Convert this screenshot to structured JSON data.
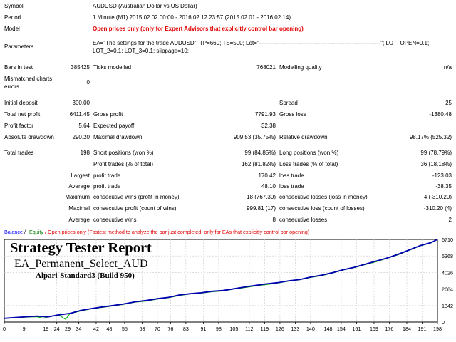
{
  "report": {
    "symbol": {
      "label": "Symbol",
      "value": "AUDUSD (Australian Dollar vs US Dollar)"
    },
    "period": {
      "label": "Period",
      "value": "1 Minute (M1) 2015.02.02 00:00 - 2016.02.12 23:57 (2015.02.01 - 2016.02.14)"
    },
    "model": {
      "label": "Model",
      "value": "Open prices only (only for Expert Advisors that explicitly control bar opening)"
    },
    "parameters": {
      "label": "Parameters",
      "line1": "EA=\"The settings for the trade AUDUSD\"; TP=660; TS=500; Lot=\"----------------------------------------------------------------\"; LOT_OPEN=0.1;",
      "line2": "LOT_2=0.1; LOT_3=0.1; slippage=10;"
    },
    "bars": {
      "label": "Bars in test",
      "value": "385425",
      "ticks_label": "Ticks modelled",
      "ticks_value": "768021",
      "quality_label": "Modelling quality",
      "quality_value": "n/a"
    },
    "mismatched": {
      "label1": "Mismatched charts",
      "label2": "errors",
      "value": "0"
    },
    "initial_deposit": {
      "label": "Initial deposit",
      "value": "300.00",
      "spread_label": "Spread",
      "spread_value": "25"
    },
    "net_profit": {
      "label": "Total net profit",
      "value": "6411.45",
      "gp_label": "Gross profit",
      "gp_value": "7791.93",
      "gl_label": "Gross loss",
      "gl_value": "-1380.48"
    },
    "profit_factor": {
      "label": "Profit factor",
      "value": "5.64",
      "ep_label": "Expected payoff",
      "ep_value": "32.38"
    },
    "drawdown": {
      "label": "Absolute drawdown",
      "value": "290.20",
      "md_label": "Maximal drawdown",
      "md_value": "909.53 (35.75%)",
      "rd_label": "Relative drawdown",
      "rd_value": "98.17% (525.32)"
    },
    "trades": {
      "label": "Total trades",
      "value": "198",
      "sp_label": "Short positions (won %)",
      "sp_value": "99 (84.85%)",
      "lp_label": "Long positions (won %)",
      "lp_value": "99 (78.79%)"
    },
    "pt": {
      "label": "Profit trades (% of total)",
      "value": "162 (81.82%)",
      "lt_label": "Loss trades (% of total)",
      "lt_value": "36 (18.18%)"
    },
    "largest": {
      "label": "Largest",
      "pt_label": "profit trade",
      "pt_value": "170.42",
      "lt_label": "loss trade",
      "lt_value": "-123.03"
    },
    "average": {
      "label": "Average",
      "pt_label": "profit trade",
      "pt_value": "48.10",
      "lt_label": "loss trade",
      "lt_value": "-38.35"
    },
    "maximum": {
      "label": "Maximum",
      "w_label": "consecutive wins (profit in money)",
      "w_value": "18 (767.30)",
      "l_label": "consecutive losses (loss in money)",
      "l_value": "4 (-310.20)"
    },
    "maximal": {
      "label": "Maximal",
      "w_label": "consecutive profit (count of wins)",
      "w_value": "999.81 (17)",
      "l_label": "consecutive loss (count of losses)",
      "l_value": "-310.20 (4)"
    },
    "average2": {
      "label": "Average",
      "w_label": "consecutive wins",
      "w_value": "8",
      "l_label": "consecutive losses",
      "l_value": "2"
    }
  },
  "chart": {
    "legend": {
      "balance": "Balance",
      "sep": " / ",
      "equity": "Equity",
      "rest": " / Open prices only (Fastest method to analyze the bar just completed, only for EAs that explicitly control bar opening)"
    },
    "overlay": {
      "title": "Strategy Tester Report",
      "ea": "EA_Permanent_Select_AUD",
      "server": "Alpari-Standard3 (Build 950)"
    },
    "colors": {
      "balance": "#0000b0",
      "equity": "#00b000",
      "legend_balance": "#0000ff",
      "legend_equity": "#008000",
      "legend_rest": "#e00000"
    }
  },
  "chart_data": {
    "type": "line",
    "x_ticks": [
      "0",
      "9",
      "19",
      "24",
      "29",
      "34",
      "42",
      "48",
      "55",
      "63",
      "70",
      "76",
      "83",
      "91",
      "98",
      "105",
      "112",
      "119",
      "126",
      "133",
      "140",
      "148",
      "154",
      "161",
      "169",
      "176",
      "184",
      "191",
      "198"
    ],
    "y_ticks": [
      "6710",
      "5368",
      "4026",
      "2684",
      "1342",
      "0"
    ],
    "ylim": [
      0,
      6710
    ],
    "xlim": [
      0,
      198
    ],
    "series": [
      {
        "name": "Balance",
        "x": [
          0,
          5,
          10,
          15,
          20,
          25,
          30,
          35,
          40,
          45,
          50,
          55,
          60,
          65,
          70,
          75,
          80,
          85,
          90,
          95,
          100,
          105,
          110,
          115,
          120,
          125,
          130,
          135,
          140,
          145,
          150,
          155,
          160,
          165,
          170,
          175,
          180,
          185,
          190,
          195,
          198
        ],
        "y": [
          300,
          370,
          430,
          480,
          420,
          590,
          700,
          950,
          1100,
          1230,
          1350,
          1480,
          1650,
          1750,
          1900,
          2000,
          2200,
          2300,
          2380,
          2500,
          2560,
          2700,
          2850,
          2980,
          3100,
          3200,
          3350,
          3450,
          3650,
          3800,
          4000,
          4250,
          4450,
          4700,
          4950,
          5200,
          5500,
          5850,
          6200,
          6450,
          6710
        ]
      },
      {
        "name": "Equity",
        "x": [
          0,
          5,
          10,
          15,
          18,
          20,
          25,
          28,
          30,
          35,
          40,
          45,
          50,
          55,
          60,
          65,
          70,
          75,
          80,
          85,
          90,
          95,
          100,
          105,
          110,
          115,
          120,
          125,
          130,
          135,
          140,
          145,
          150,
          155,
          160,
          165,
          170,
          175,
          180,
          185,
          190,
          195,
          198
        ],
        "y": [
          300,
          330,
          400,
          430,
          300,
          420,
          560,
          220,
          680,
          900,
          1080,
          1200,
          1320,
          1450,
          1620,
          1700,
          1860,
          1980,
          2150,
          2280,
          2350,
          2460,
          2530,
          2680,
          2800,
          2940,
          3050,
          3170,
          3320,
          3430,
          3620,
          3760,
          3980,
          4220,
          4420,
          4660,
          4900,
          5180,
          5460,
          5820,
          6180,
          6420,
          6690
        ]
      }
    ],
    "grid": true
  }
}
